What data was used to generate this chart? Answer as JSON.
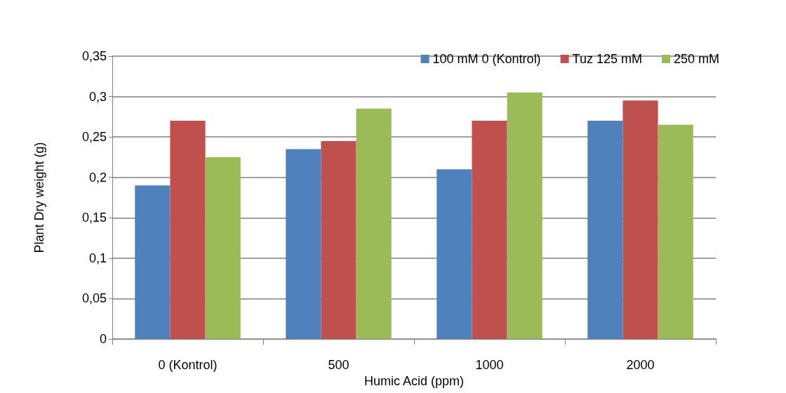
{
  "chart_data": {
    "type": "bar",
    "xlabel": "Humic Acid (ppm)",
    "ylabel": "Plant Dry weight (g)",
    "categories": [
      "0 (Kontrol)",
      "500",
      "1000",
      "2000"
    ],
    "series": [
      {
        "name": "100 mM 0 (Kontrol)",
        "color": "#4f81bd",
        "values": [
          0.19,
          0.235,
          0.21,
          0.27
        ]
      },
      {
        "name": "Tuz 125 mM",
        "color": "#c0504d",
        "values": [
          0.27,
          0.245,
          0.27,
          0.295
        ]
      },
      {
        "name": "250 mM",
        "color": "#9bbb59",
        "values": [
          0.225,
          0.285,
          0.305,
          0.265
        ]
      }
    ],
    "ylim": [
      0,
      0.35
    ],
    "yticks": [
      {
        "value": 0,
        "label": "0"
      },
      {
        "value": 0.05,
        "label": "0,05"
      },
      {
        "value": 0.1,
        "label": "0,1"
      },
      {
        "value": 0.15,
        "label": "0,15"
      },
      {
        "value": 0.2,
        "label": "0,2"
      },
      {
        "value": 0.25,
        "label": "0,25"
      },
      {
        "value": 0.3,
        "label": "0,3"
      },
      {
        "value": 0.35,
        "label": "0,35"
      }
    ],
    "grid": "y",
    "legend": "top right"
  }
}
